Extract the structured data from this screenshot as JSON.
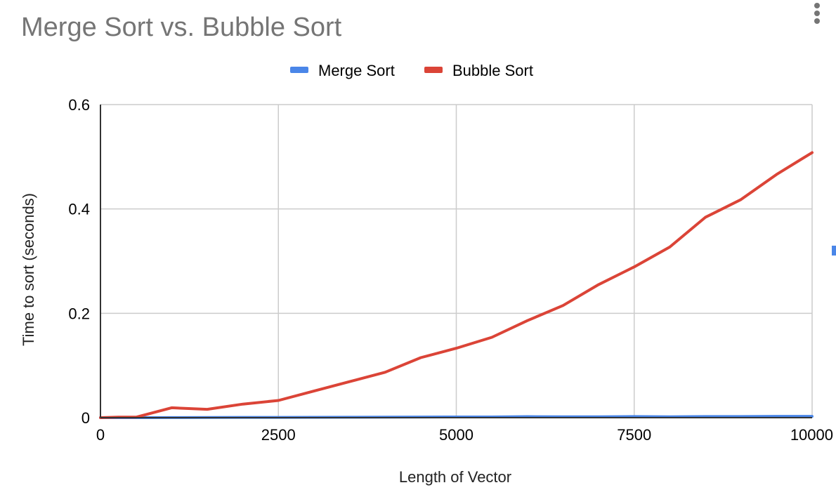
{
  "title": "Merge Sort vs. Bubble Sort",
  "menu_icon": "more-vert-icon",
  "edge_handle_color": "#4a86e8",
  "chart_data": {
    "type": "line",
    "title": "Merge Sort vs. Bubble Sort",
    "xlabel": "Length of Vector",
    "ylabel": "Time to sort (seconds)",
    "xlim": [
      0,
      10000
    ],
    "ylim": [
      0,
      0.6
    ],
    "x_ticks": [
      "0",
      "2500",
      "5000",
      "7500",
      "10000"
    ],
    "y_ticks": [
      "0",
      "0.2",
      "0.4",
      "0.6"
    ],
    "grid": true,
    "legend_position": "top",
    "x": [
      0,
      250,
      500,
      1000,
      1500,
      2000,
      2500,
      3000,
      3500,
      4000,
      4500,
      5000,
      5500,
      6000,
      6500,
      7000,
      7500,
      8000,
      8500,
      9000,
      9500,
      10000
    ],
    "series": [
      {
        "name": "Merge Sort",
        "color": "#4a86e8",
        "values": [
          0,
          0,
          0,
          0.0002,
          0.0003,
          0.0005,
          0.0006,
          0.0007,
          0.0008,
          0.001,
          0.0012,
          0.0013,
          0.0014,
          0.002,
          0.0016,
          0.0017,
          0.0022,
          0.0018,
          0.0022,
          0.0021,
          0.0025,
          0.0026
        ]
      },
      {
        "name": "Bubble Sort",
        "color": "#db4437",
        "values": [
          0,
          0.001,
          0.001,
          0.019,
          0.016,
          0.026,
          0.033,
          0.051,
          0.069,
          0.087,
          0.115,
          0.133,
          0.154,
          0.186,
          0.215,
          0.255,
          0.289,
          0.327,
          0.384,
          0.418,
          0.466,
          0.508
        ]
      }
    ]
  }
}
